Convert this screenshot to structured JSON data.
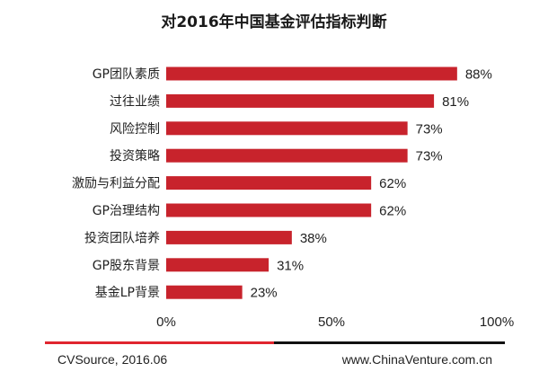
{
  "chart_data": {
    "type": "bar",
    "orientation": "horizontal",
    "title": "对2016年中国基金评估指标判断",
    "categories": [
      "GP团队素质",
      "过往业绩",
      "风险控制",
      "投资策略",
      "激励与利益分配",
      "GP治理结构",
      "投资团队培养",
      "GP股东背景",
      "基金LP背景"
    ],
    "values": [
      88,
      81,
      73,
      73,
      62,
      62,
      38,
      31,
      23
    ],
    "value_labels": [
      "88%",
      "81%",
      "73%",
      "73%",
      "62%",
      "62%",
      "38%",
      "31%",
      "23%"
    ],
    "xlim": [
      0,
      100
    ],
    "x_ticks": [
      0,
      50,
      100
    ],
    "x_tick_labels": [
      "0%",
      "50%",
      "100%"
    ],
    "grid": false,
    "bar_color": "#c8232c"
  },
  "footer": {
    "source": "CVSource, 2016.06",
    "website": "www.ChinaVenture.com.cn",
    "accent_color": "#e0262f"
  }
}
